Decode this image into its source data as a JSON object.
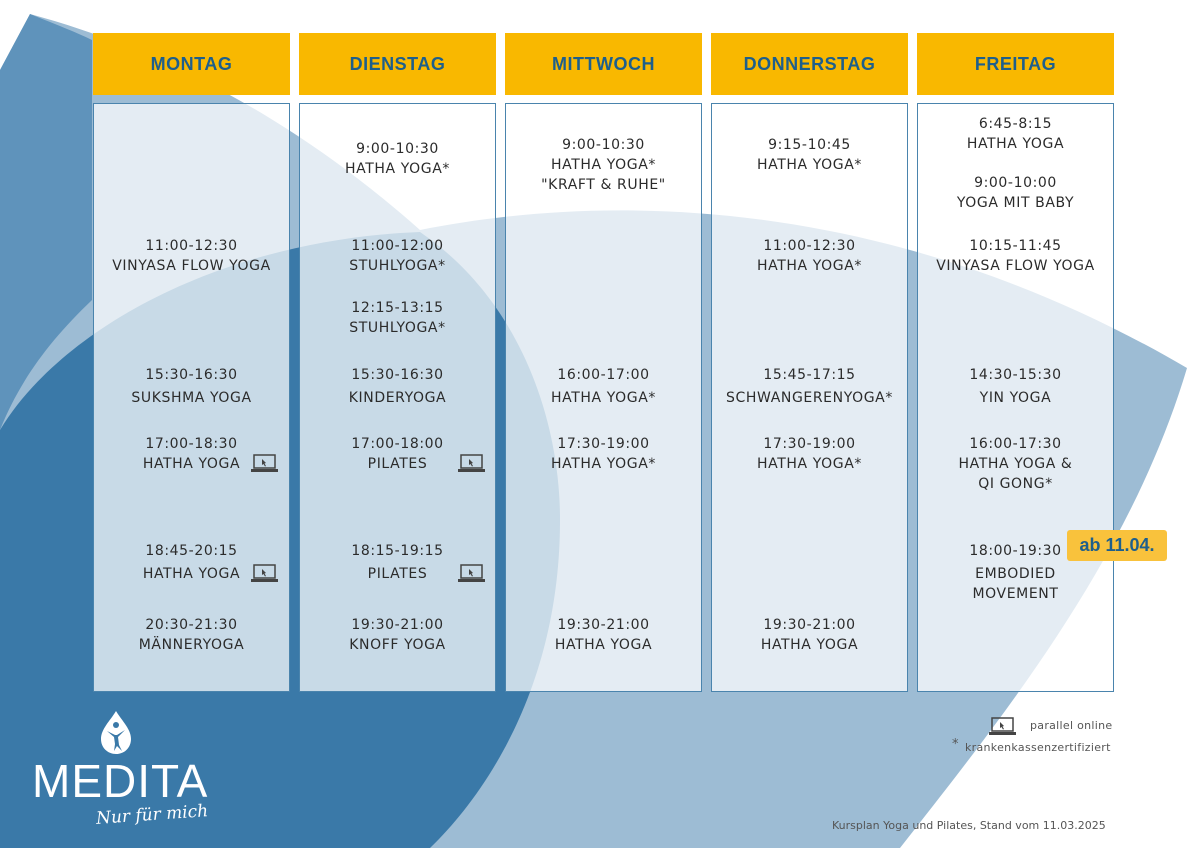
{
  "colors": {
    "header": "#F9B800",
    "header_text": "#1E5F8C",
    "border": "#4A84AD",
    "wave_light": "#9DBCD4",
    "wave_dark": "#3A79A8"
  },
  "days": [
    {
      "label": "MONTAG",
      "classes": [
        {
          "time": "11:00-12:30",
          "name": "VINYASA FLOW YOGA",
          "top": 0
        },
        {
          "time": "15:30-16:30",
          "name": "SUKSHMA YOGA"
        },
        {
          "time": "17:00-18:30",
          "name": "HATHA YOGA",
          "icon": "laptop-icon"
        },
        {
          "time": "18:45-20:15",
          "name": "HATHA YOGA",
          "icon": "laptop-icon"
        },
        {
          "time": "20:30-21:30",
          "name": "MÄNNERYOGA"
        }
      ]
    },
    {
      "label": "DIENSTAG",
      "classes": [
        {
          "time": "9:00-10:30",
          "name": "HATHA YOGA*"
        },
        {
          "time": "11:00-12:00",
          "name": "STUHLYOGA*"
        },
        {
          "time": "12:15-13:15",
          "name": "STUHLYOGA*"
        },
        {
          "time": "15:30-16:30",
          "name": "KINDERYOGA"
        },
        {
          "time": "17:00-18:00",
          "name": "PILATES",
          "icon": "laptop-icon"
        },
        {
          "time": "18:15-19:15",
          "name": "PILATES",
          "icon": "laptop-icon"
        },
        {
          "time": "19:30-21:00",
          "name": "KNOFF YOGA"
        }
      ]
    },
    {
      "label": "MITTWOCH",
      "classes": [
        {
          "time": "9:00-10:30",
          "name": "HATHA YOGA*",
          "name2": "\"KRAFT & RUHE\""
        },
        {
          "time": "16:00-17:00",
          "name": "HATHA YOGA*"
        },
        {
          "time": "17:30-19:00",
          "name": "HATHA YOGA*"
        },
        {
          "time": "19:30-21:00",
          "name": "HATHA YOGA"
        }
      ]
    },
    {
      "label": "DONNERSTAG",
      "classes": [
        {
          "time": "9:15-10:45",
          "name": "HATHA YOGA*"
        },
        {
          "time": "11:00-12:30",
          "name": "HATHA YOGA*"
        },
        {
          "time": "15:45-17:15",
          "name": "SCHWANGERENYOGA*"
        },
        {
          "time": "17:30-19:00",
          "name": "HATHA YOGA*"
        },
        {
          "time": "19:30-21:00",
          "name": "HATHA YOGA"
        }
      ]
    },
    {
      "label": "FREITAG",
      "classes": [
        {
          "time": "6:45-8:15",
          "name": "HATHA YOGA"
        },
        {
          "time": "9:00-10:00",
          "name": "YOGA MIT BABY"
        },
        {
          "time": "10:15-11:45",
          "name": "VINYASA FLOW YOGA"
        },
        {
          "time": "14:30-15:30",
          "name": "YIN YOGA"
        },
        {
          "time": "16:00-17:30",
          "name": "HATHA YOGA &",
          "name2": "QI GONG*"
        },
        {
          "time": "18:00-19:30",
          "name": "EMBODIED",
          "name2": "MOVEMENT"
        }
      ]
    }
  ],
  "badge": "ab 11.04.",
  "legend": {
    "online": "parallel online",
    "asterisk": "*",
    "certified": "krankenkassenzertifiziert"
  },
  "footer": "Kursplan Yoga und Pilates, Stand vom 11.03.2025",
  "logo": {
    "word": "MEDITA",
    "tagline": "Nur für mich"
  }
}
